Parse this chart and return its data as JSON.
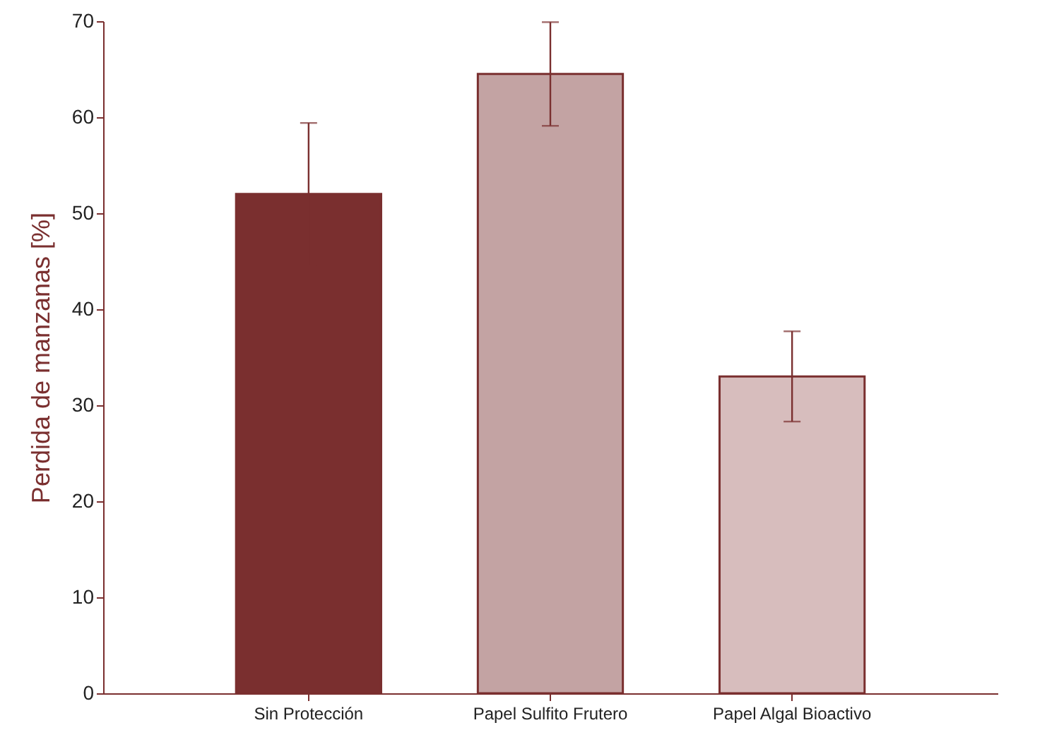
{
  "chart_data": {
    "type": "bar",
    "ylabel": "Perdida de manzanas [%]",
    "categories": [
      "Sin Protección",
      "Papel Sulfito Frutero",
      "Papel Algal Bioactivo"
    ],
    "values": [
      52,
      64.5,
      33
    ],
    "colors": [
      "#7a2f2f",
      "#c3a3a3",
      "#d7bdbd"
    ],
    "errors": [
      7.4,
      5.4,
      4.7
    ],
    "ylim": [
      0,
      70
    ],
    "yticks": [
      0,
      10,
      20,
      30,
      40,
      50,
      60,
      70
    ],
    "grid": false
  }
}
